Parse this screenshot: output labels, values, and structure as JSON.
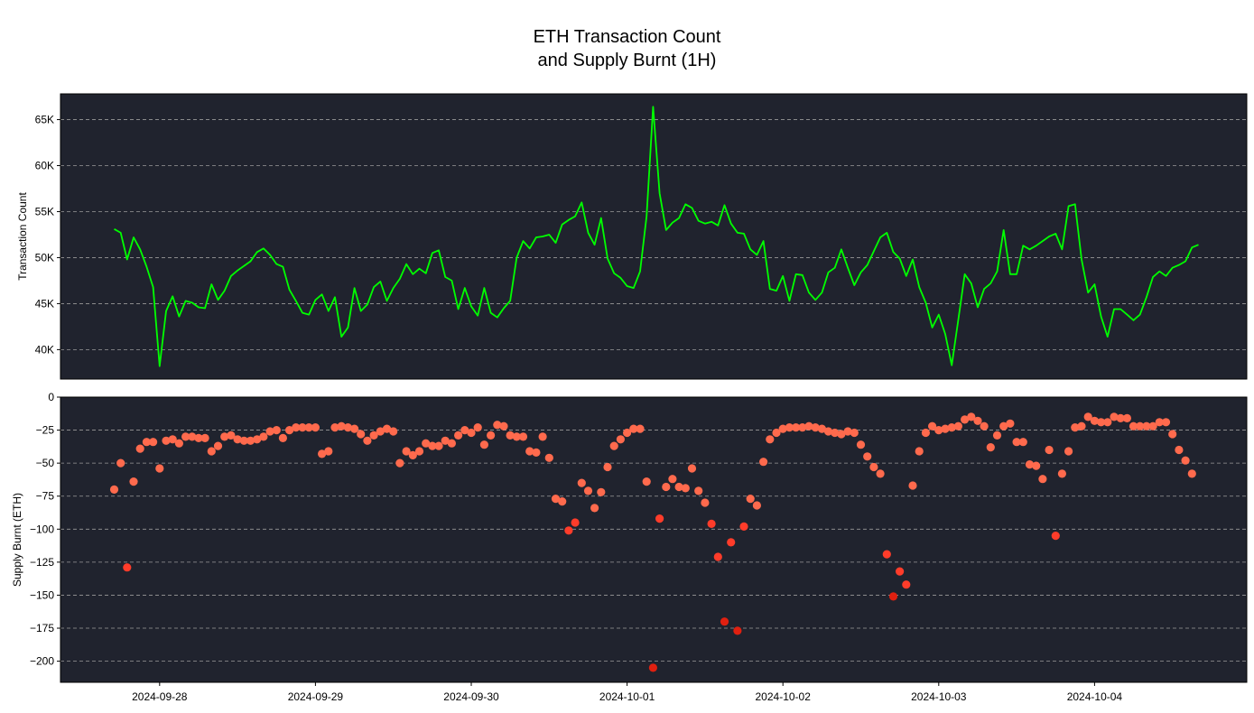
{
  "title": "ETH Transaction Count\nand Supply Burnt (1H)",
  "colors": {
    "panel_bg": "#20232e",
    "grid": "#9a9a9a",
    "line": "#00ff00",
    "dots": [
      "#ff6a4d",
      "#ff3c2a",
      "#e02010"
    ]
  },
  "chart_data": [
    {
      "type": "line",
      "ylabel": "Transaction Count",
      "ylim": [
        36800,
        67800
      ],
      "yticks": [
        40000,
        45000,
        50000,
        55000,
        60000,
        65000
      ],
      "ytick_labels": [
        "40K",
        "45K",
        "50K",
        "55K",
        "60K",
        "65K"
      ],
      "grid": "horizontal dashed",
      "x_start": "2024-09-27 17:00",
      "x_step": "1H",
      "series": [
        {
          "values": [
            53100,
            52700,
            49800,
            52200,
            50900,
            49000,
            46800,
            38200,
            44200,
            45800,
            43600,
            45300,
            45100,
            44600,
            44500,
            47100,
            45400,
            46400,
            48000,
            48600,
            49100,
            49600,
            50600,
            51000,
            50300,
            49300,
            49000,
            46500,
            45300,
            44000,
            43800,
            45400,
            46000,
            44200,
            45700,
            41400,
            42400,
            46700,
            44200,
            44900,
            46800,
            47400,
            45300,
            46700,
            47700,
            49300,
            48200,
            48800,
            48300,
            50500,
            50800,
            47900,
            47500,
            44400,
            46700,
            44700,
            43700,
            46700,
            44000,
            43500,
            44500,
            45300,
            50000,
            51800,
            51000,
            52200,
            52300,
            52500,
            51600,
            53600,
            54100,
            54500,
            56000,
            52700,
            51400,
            54300,
            49900,
            48300,
            47800,
            46900,
            46700,
            48500,
            54500,
            66400,
            57000,
            53000,
            53800,
            54300,
            55800,
            55400,
            54000,
            53700,
            53900,
            53500,
            55700,
            53700,
            52700,
            52600,
            50900,
            50300,
            51800,
            46600,
            46400,
            48000,
            45300,
            48200,
            48100,
            46200,
            45400,
            46200,
            48400,
            48900,
            50900,
            48900,
            47000,
            48400,
            49200,
            50700,
            52200,
            52700,
            50600,
            49900,
            48000,
            49800,
            46800,
            45100,
            42400,
            43800,
            41700,
            38300,
            43200,
            48200,
            47200,
            44600,
            46600,
            47200,
            48500,
            53000,
            48200,
            48200,
            51300,
            50900,
            51300,
            51800,
            52300,
            52600,
            50900,
            55600,
            55800,
            49800,
            46200,
            47100,
            43600,
            41400,
            44400,
            44400,
            43800,
            43200,
            43800,
            45700,
            47900,
            48500,
            48000,
            48900,
            49200,
            49600,
            51100,
            51400
          ]
        }
      ]
    },
    {
      "type": "scatter",
      "ylabel": "Supply Burnt (ETH)",
      "ylim": [
        -216,
        0
      ],
      "yticks": [
        -200,
        -175,
        -150,
        -125,
        -100,
        -75,
        -50,
        -25,
        0
      ],
      "ytick_labels": [
        "−200",
        "−175",
        "−150",
        "−125",
        "−100",
        "−75",
        "−50",
        "−25",
        "0"
      ],
      "grid": "horizontal dashed",
      "x_start": "2024-09-27 17:00",
      "x_step": "1H",
      "xticks": [
        "2024-09-28",
        "2024-09-29",
        "2024-09-30",
        "2024-10-01",
        "2024-10-02",
        "2024-10-03",
        "2024-10-04"
      ],
      "series": [
        {
          "values": [
            -70,
            -50,
            -129,
            -64,
            -39,
            -34,
            -34,
            -54,
            -33,
            -32,
            -35,
            -30,
            -30,
            -31,
            -31,
            -41,
            -37,
            -30,
            -29,
            -32,
            -33,
            -33,
            -32,
            -30,
            -26,
            -25,
            -31,
            -25,
            -23,
            -23,
            -23,
            -23,
            -43,
            -41,
            -23,
            -22,
            -23,
            -24,
            -28,
            -33,
            -29,
            -26,
            -24,
            -26,
            -50,
            -41,
            -44,
            -41,
            -35,
            -37,
            -37,
            -33,
            -35,
            -29,
            -25,
            -27,
            -23,
            -36,
            -29,
            -21,
            -22,
            -29,
            -30,
            -30,
            -41,
            -42,
            -30,
            -46,
            -77,
            -79,
            -101,
            -95,
            -65,
            -71,
            -84,
            -72,
            -53,
            -37,
            -32,
            -27,
            -24,
            -24,
            -64,
            -205,
            -92,
            -68,
            -62,
            -68,
            -69,
            -54,
            -71,
            -80,
            -96,
            -121,
            -170,
            -110,
            -177,
            -98,
            -77,
            -82,
            -49,
            -32,
            -27,
            -24,
            -23,
            -23,
            -23,
            -22,
            -23,
            -24,
            -26,
            -27,
            -28,
            -26,
            -27,
            -36,
            -45,
            -53,
            -58,
            -119,
            -151,
            -132,
            -142,
            -67,
            -41,
            -27,
            -22,
            -25,
            -24,
            -23,
            -22,
            -17,
            -15,
            -18,
            -22,
            -38,
            -29,
            -22,
            -20,
            -34,
            -34,
            -51,
            -52,
            -62,
            -40,
            -105,
            -58,
            -41,
            -23,
            -22,
            -15,
            -18,
            -19,
            -19,
            -15,
            -16,
            -16,
            -22,
            -22,
            -22,
            -22,
            -19,
            -19,
            -28,
            -40,
            -48,
            -58
          ]
        }
      ]
    }
  ]
}
